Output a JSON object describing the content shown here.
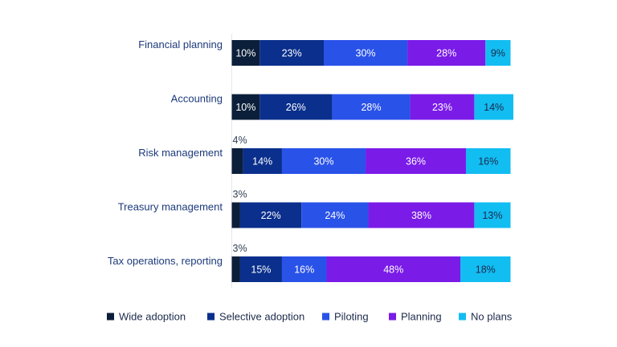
{
  "chart_data": {
    "type": "bar",
    "orientation": "horizontal",
    "stacked": true,
    "title": "",
    "xlabel": "",
    "ylabel": "",
    "xlim": [
      0,
      100
    ],
    "grid": false,
    "legend_position": "bottom",
    "categories": [
      "Financial planning",
      "Accounting",
      "Risk management",
      "Treasury management",
      "Tax operations, reporting"
    ],
    "series": [
      {
        "name": "Wide adoption",
        "color": "#0b1f3a",
        "values": [
          10,
          10,
          4,
          3,
          3
        ]
      },
      {
        "name": "Selective adoption",
        "color": "#0a2f8c",
        "values": [
          23,
          26,
          14,
          22,
          15
        ]
      },
      {
        "name": "Piloting",
        "color": "#2952e8",
        "values": [
          30,
          28,
          30,
          24,
          16
        ]
      },
      {
        "name": "Planning",
        "color": "#7a1be8",
        "values": [
          28,
          23,
          36,
          38,
          48
        ]
      },
      {
        "name": "No plans",
        "color": "#12bdf2",
        "values": [
          9,
          14,
          16,
          13,
          18
        ]
      }
    ],
    "value_suffix": "%",
    "label_color_on_dark": "#ffffff",
    "label_color_on_light": "#1c2a4a",
    "category_label_color": "#1c3a7a",
    "axis_line_color": "#e3e6ee"
  }
}
